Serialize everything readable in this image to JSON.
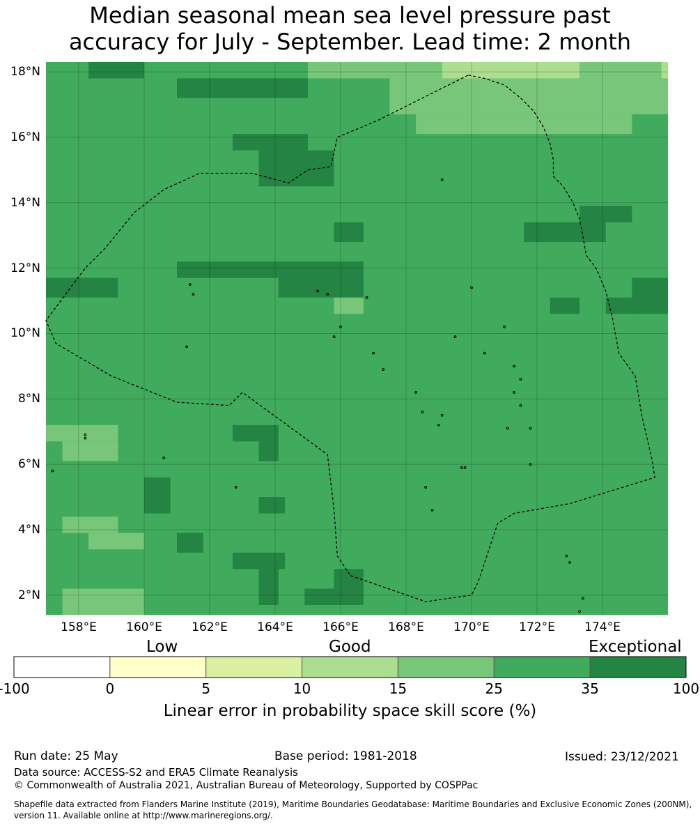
{
  "title": {
    "line1": "Median seasonal mean sea level pressure past",
    "line2": "accuracy for July - September. Lead time: 2 month"
  },
  "map": {
    "lat_range": [
      1.4,
      18.3
    ],
    "lon_range": [
      157.0,
      176.0
    ],
    "lat_labels": [
      "18°N",
      "16°N",
      "14°N",
      "12°N",
      "10°N",
      "8°N",
      "6°N",
      "4°N",
      "2°N"
    ],
    "lat_values": [
      18,
      16,
      14,
      12,
      10,
      8,
      6,
      4,
      2
    ],
    "lon_labels": [
      "158°E",
      "160°E",
      "162°E",
      "164°E",
      "166°E",
      "168°E",
      "170°E",
      "172°E",
      "174°E"
    ],
    "lon_values": [
      158,
      160,
      162,
      164,
      166,
      168,
      170,
      172,
      174
    ],
    "background_category": 5,
    "cells": [
      [
        158.3,
        18.3,
        160.0,
        17.8,
        6
      ],
      [
        165.0,
        18.3,
        169.1,
        17.8,
        4
      ],
      [
        169.1,
        18.3,
        173.3,
        17.8,
        3
      ],
      [
        173.3,
        18.3,
        175.8,
        17.8,
        4
      ],
      [
        175.8,
        18.3,
        176.0,
        17.8,
        3
      ],
      [
        161.0,
        17.8,
        165.0,
        17.2,
        6
      ],
      [
        167.5,
        17.8,
        176.0,
        16.7,
        4
      ],
      [
        168.3,
        16.7,
        174.9,
        16.1,
        4
      ],
      [
        162.7,
        16.1,
        165.0,
        15.6,
        6
      ],
      [
        163.5,
        15.6,
        165.0,
        14.5,
        6
      ],
      [
        165.0,
        15.6,
        165.8,
        14.5,
        6
      ],
      [
        173.3,
        13.9,
        174.9,
        13.4,
        6
      ],
      [
        165.8,
        13.4,
        166.7,
        12.8,
        6
      ],
      [
        171.6,
        13.4,
        174.1,
        12.8,
        6
      ],
      [
        161.0,
        12.2,
        166.7,
        11.7,
        6
      ],
      [
        157.0,
        11.7,
        159.2,
        11.1,
        6
      ],
      [
        164.1,
        11.7,
        166.7,
        11.1,
        6
      ],
      [
        165.8,
        11.1,
        166.7,
        10.6,
        4
      ],
      [
        172.4,
        11.1,
        173.3,
        10.6,
        6
      ],
      [
        174.1,
        11.1,
        175.0,
        10.6,
        6
      ],
      [
        174.9,
        11.7,
        176.0,
        10.6,
        6
      ],
      [
        157.0,
        7.2,
        159.2,
        6.7,
        4
      ],
      [
        157.5,
        6.7,
        159.2,
        6.1,
        4
      ],
      [
        162.7,
        7.2,
        164.1,
        6.7,
        6
      ],
      [
        163.5,
        6.7,
        164.1,
        6.1,
        6
      ],
      [
        160.0,
        5.6,
        160.8,
        4.5,
        6
      ],
      [
        163.5,
        5.0,
        164.3,
        4.5,
        6
      ],
      [
        157.5,
        4.4,
        159.2,
        3.9,
        4
      ],
      [
        158.3,
        3.9,
        160.0,
        3.4,
        4
      ],
      [
        161.0,
        3.9,
        161.8,
        3.3,
        6
      ],
      [
        162.7,
        3.3,
        164.3,
        2.8,
        6
      ],
      [
        163.5,
        2.8,
        164.1,
        1.7,
        6
      ],
      [
        164.9,
        2.2,
        166.7,
        1.7,
        6
      ],
      [
        165.8,
        2.8,
        166.7,
        2.2,
        6
      ],
      [
        157.5,
        2.2,
        160.0,
        1.4,
        4
      ]
    ],
    "eez_outline": [
      [
        169.9,
        17.9
      ],
      [
        170.4,
        17.8
      ],
      [
        171.0,
        17.6
      ],
      [
        171.5,
        17.2
      ],
      [
        171.9,
        16.8
      ],
      [
        172.2,
        16.3
      ],
      [
        172.4,
        15.8
      ],
      [
        172.5,
        15.3
      ],
      [
        172.5,
        14.8
      ],
      [
        172.8,
        14.5
      ],
      [
        173.1,
        14.0
      ],
      [
        173.3,
        13.5
      ],
      [
        173.4,
        13.0
      ],
      [
        173.5,
        12.4
      ],
      [
        173.8,
        12.0
      ],
      [
        174.1,
        11.3
      ],
      [
        174.3,
        10.5
      ],
      [
        174.5,
        9.4
      ],
      [
        175.0,
        8.7
      ],
      [
        175.2,
        7.5
      ],
      [
        175.5,
        6.2
      ],
      [
        175.6,
        5.6
      ],
      [
        173.0,
        4.8
      ],
      [
        171.3,
        4.5
      ],
      [
        170.8,
        4.2
      ],
      [
        170.2,
        2.4
      ],
      [
        170.0,
        2.0
      ],
      [
        168.6,
        1.8
      ],
      [
        166.3,
        2.6
      ],
      [
        165.9,
        3.2
      ],
      [
        165.8,
        4.6
      ],
      [
        165.6,
        6.3
      ],
      [
        163.0,
        8.2
      ],
      [
        162.6,
        7.8
      ],
      [
        161.0,
        7.9
      ],
      [
        159.0,
        8.7
      ],
      [
        157.3,
        9.7
      ],
      [
        157.0,
        10.4
      ],
      [
        157.6,
        11.2
      ],
      [
        158.2,
        12.0
      ],
      [
        158.8,
        12.6
      ],
      [
        159.7,
        13.7
      ],
      [
        160.6,
        14.4
      ],
      [
        161.7,
        14.9
      ],
      [
        163.3,
        14.9
      ],
      [
        164.4,
        14.6
      ],
      [
        165.0,
        15.0
      ],
      [
        165.7,
        15.1
      ],
      [
        165.9,
        16.0
      ],
      [
        167.1,
        16.5
      ],
      [
        169.9,
        17.9
      ]
    ],
    "islands": [
      [
        158.2,
        6.9
      ],
      [
        158.2,
        6.8
      ],
      [
        160.6,
        6.2
      ],
      [
        162.8,
        5.3
      ],
      [
        157.2,
        5.8
      ],
      [
        161.3,
        9.6
      ],
      [
        165.3,
        11.3
      ],
      [
        165.6,
        11.2
      ],
      [
        166.8,
        11.1
      ],
      [
        166.0,
        10.2
      ],
      [
        165.8,
        9.9
      ],
      [
        167.0,
        9.4
      ],
      [
        167.3,
        8.9
      ],
      [
        168.3,
        8.2
      ],
      [
        168.5,
        7.6
      ],
      [
        169.0,
        7.2
      ],
      [
        169.1,
        7.5
      ],
      [
        169.7,
        5.9
      ],
      [
        169.8,
        5.9
      ],
      [
        168.6,
        5.3
      ],
      [
        168.8,
        4.6
      ],
      [
        171.1,
        7.1
      ],
      [
        171.8,
        7.1
      ],
      [
        171.8,
        6.0
      ],
      [
        171.3,
        9.0
      ],
      [
        171.5,
        8.6
      ],
      [
        171.3,
        8.2
      ],
      [
        171.5,
        7.8
      ],
      [
        170.4,
        9.4
      ],
      [
        169.5,
        9.9
      ],
      [
        171.0,
        10.2
      ],
      [
        172.9,
        3.2
      ],
      [
        173.0,
        3.0
      ],
      [
        173.4,
        1.9
      ],
      [
        173.3,
        1.5
      ],
      [
        170.0,
        11.4
      ],
      [
        169.1,
        14.7
      ],
      [
        161.4,
        11.5
      ],
      [
        161.5,
        11.2
      ]
    ]
  },
  "colorbar": {
    "qual_labels": [
      "Low",
      "Good",
      "Exceptional"
    ],
    "ticks": [
      "-100",
      "0",
      "5",
      "10",
      "15",
      "25",
      "35",
      "100"
    ],
    "colors": [
      "#ffffff",
      "#ffffcc",
      "#d9f0a3",
      "#addd8e",
      "#78c679",
      "#41ab5d",
      "#238443"
    ],
    "title": "Linear error in probability space skill score (%)"
  },
  "footer": {
    "run_date": "Run date: 25 May",
    "base_period": "Base period: 1981-2018",
    "issued": "Issued: 23/12/2021",
    "data_source": "Data source: ACCESS-S2 and ERA5 Climate Reanalysis",
    "copyright": "© Commonwealth of Australia 2021, Australian Bureau of Meteorology, Supported by COSPPac",
    "shapefile_1": "Shapefile data extracted from Flanders Marine Institute (2019), Maritime Boundaries Geodatabase: Maritime Boundaries and Exclusive Economic Zones (200NM),",
    "shapefile_2": "version 11. Available online at http://www.marineregions.org/."
  }
}
